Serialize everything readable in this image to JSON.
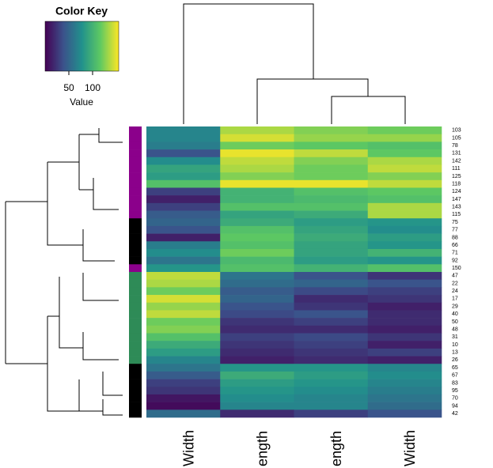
{
  "chart_data": {
    "type": "heatmap",
    "key_title": "Color Key",
    "key_xlabel": "Value",
    "zlim": [
      0,
      155
    ],
    "key_ticks": [
      50,
      100
    ],
    "colormap": "viridis",
    "columns": [
      "Width",
      "ength",
      "ength",
      "Width"
    ],
    "rows": [
      "103",
      "105",
      "78",
      "131",
      "142",
      "111",
      "125",
      "118",
      "124",
      "147",
      "143",
      "115",
      "75",
      "77",
      "88",
      "66",
      "71",
      "92",
      "150",
      "47",
      "22",
      "24",
      "17",
      "29",
      "40",
      "50",
      "48",
      "31",
      "10",
      "13",
      "26",
      "65",
      "67",
      "83",
      "95",
      "70",
      "94",
      "42"
    ],
    "row_colors": [
      "#8b008b",
      "#8b008b",
      "#8b008b",
      "#8b008b",
      "#8b008b",
      "#8b008b",
      "#8b008b",
      "#8b008b",
      "#8b008b",
      "#8b008b",
      "#8b008b",
      "#8b008b",
      "#000000",
      "#000000",
      "#000000",
      "#000000",
      "#000000",
      "#000000",
      "#8b008b",
      "#2e8b57",
      "#2e8b57",
      "#2e8b57",
      "#2e8b57",
      "#2e8b57",
      "#2e8b57",
      "#2e8b57",
      "#2e8b57",
      "#2e8b57",
      "#2e8b57",
      "#2e8b57",
      "#2e8b57",
      "#000000",
      "#000000",
      "#000000",
      "#000000",
      "#000000",
      "#000000",
      "#000000"
    ],
    "values": [
      [
        70,
        135,
        125,
        120
      ],
      [
        70,
        145,
        130,
        130
      ],
      [
        65,
        120,
        115,
        110
      ],
      [
        40,
        150,
        140,
        115
      ],
      [
        75,
        140,
        125,
        135
      ],
      [
        90,
        135,
        120,
        140
      ],
      [
        85,
        125,
        120,
        125
      ],
      [
        110,
        150,
        150,
        140
      ],
      [
        30,
        100,
        110,
        115
      ],
      [
        15,
        100,
        105,
        110
      ],
      [
        30,
        110,
        110,
        135
      ],
      [
        45,
        90,
        95,
        135
      ],
      [
        50,
        95,
        85,
        80
      ],
      [
        40,
        110,
        90,
        75
      ],
      [
        15,
        115,
        95,
        85
      ],
      [
        65,
        110,
        90,
        80
      ],
      [
        75,
        120,
        90,
        100
      ],
      [
        60,
        105,
        85,
        80
      ],
      [
        80,
        110,
        100,
        110
      ],
      [
        140,
        60,
        40,
        25
      ],
      [
        135,
        55,
        50,
        40
      ],
      [
        120,
        45,
        35,
        30
      ],
      [
        145,
        50,
        20,
        25
      ],
      [
        130,
        40,
        25,
        15
      ],
      [
        140,
        35,
        40,
        20
      ],
      [
        120,
        25,
        30,
        20
      ],
      [
        125,
        20,
        20,
        15
      ],
      [
        110,
        30,
        35,
        25
      ],
      [
        95,
        25,
        30,
        15
      ],
      [
        85,
        20,
        25,
        30
      ],
      [
        70,
        15,
        20,
        15
      ],
      [
        60,
        80,
        80,
        70
      ],
      [
        45,
        95,
        85,
        75
      ],
      [
        30,
        85,
        80,
        70
      ],
      [
        25,
        80,
        75,
        65
      ],
      [
        10,
        75,
        70,
        60
      ],
      [
        5,
        70,
        70,
        55
      ],
      [
        55,
        20,
        30,
        40
      ]
    ]
  }
}
